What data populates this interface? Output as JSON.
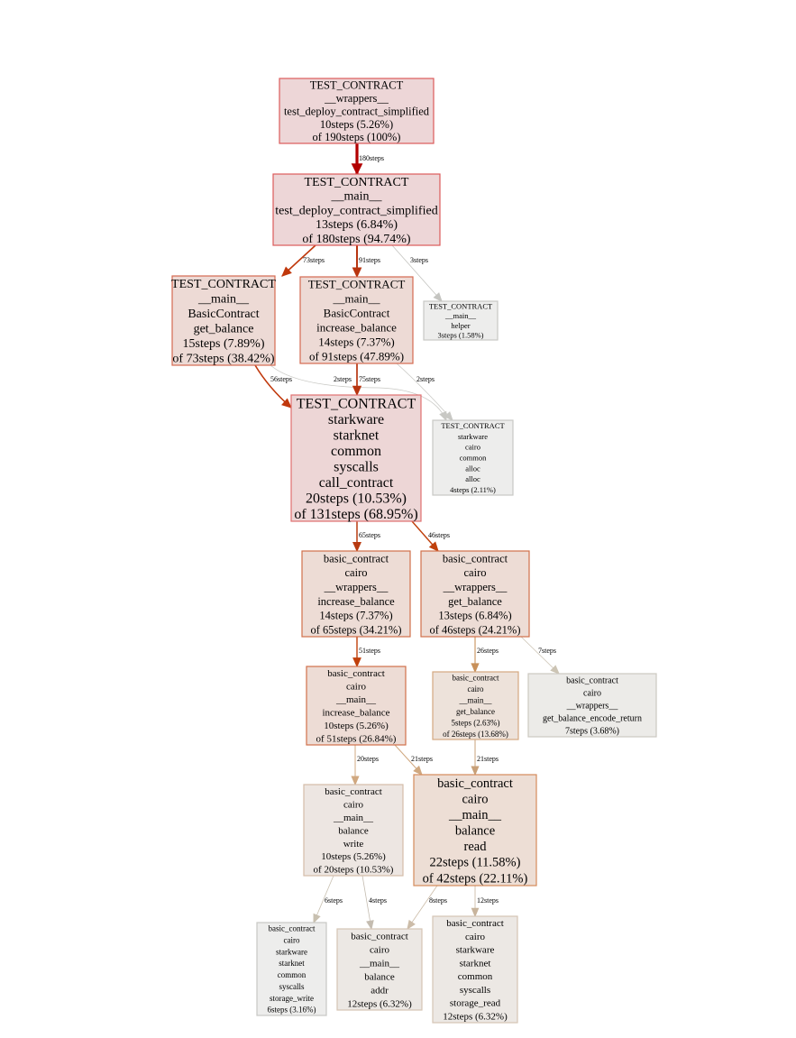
{
  "graph": {
    "nodes": [
      {
        "id": "n1",
        "lines": [
          "TEST_CONTRACT",
          "__wrappers__",
          "test_deploy_contract_simplified",
          "10steps (5.26%)",
          "of 190steps (100%)"
        ],
        "fill": "#edd6d7",
        "stroke": "#dc5a5a"
      },
      {
        "id": "n2",
        "lines": [
          "TEST_CONTRACT",
          "__main__",
          "test_deploy_contract_simplified",
          "13steps (6.84%)",
          "of 180steps (94.74%)"
        ],
        "fill": "#edd6d7",
        "stroke": "#dc5a5a"
      },
      {
        "id": "n3",
        "lines": [
          "TEST_CONTRACT",
          "__main__",
          "BasicContract",
          "get_balance",
          "15steps (7.89%)",
          "of 73steps (38.42%)"
        ],
        "fill": "#eddad5",
        "stroke": "#d46a50"
      },
      {
        "id": "n4",
        "lines": [
          "TEST_CONTRACT",
          "__main__",
          "BasicContract",
          "increase_balance",
          "14steps (7.37%)",
          "of 91steps (47.89%)"
        ],
        "fill": "#eddad5",
        "stroke": "#d46a50"
      },
      {
        "id": "n5",
        "lines": [
          "TEST_CONTRACT",
          "__main__",
          "helper",
          "3steps (1.58%)"
        ],
        "fill": "#ededec",
        "stroke": "#c8c8c4"
      },
      {
        "id": "n6",
        "lines": [
          "TEST_CONTRACT",
          "starkware",
          "starknet",
          "common",
          "syscalls",
          "call_contract",
          "20steps (10.53%)",
          "of 131steps (68.95%)"
        ],
        "fill": "#edd6d6",
        "stroke": "#e07070"
      },
      {
        "id": "n7",
        "lines": [
          "TEST_CONTRACT",
          "starkware",
          "cairo",
          "common",
          "alloc",
          "alloc",
          "4steps (2.11%)"
        ],
        "fill": "#ededec",
        "stroke": "#c8c8c4"
      },
      {
        "id": "n8",
        "lines": [
          "basic_contract",
          "cairo",
          "__wrappers__",
          "increase_balance",
          "14steps (7.37%)",
          "of 65steps (34.21%)"
        ],
        "fill": "#eddcd5",
        "stroke": "#d0704a"
      },
      {
        "id": "n9",
        "lines": [
          "basic_contract",
          "cairo",
          "__wrappers__",
          "get_balance",
          "13steps (6.84%)",
          "of 46steps (24.21%)"
        ],
        "fill": "#eddcd5",
        "stroke": "#d0704a"
      },
      {
        "id": "n10",
        "lines": [
          "basic_contract",
          "cairo",
          "__main__",
          "increase_balance",
          "10steps (5.26%)",
          "of 51steps (26.84%)"
        ],
        "fill": "#eddcd5",
        "stroke": "#d0704a"
      },
      {
        "id": "n11",
        "lines": [
          "basic_contract",
          "cairo",
          "__main__",
          "get_balance",
          "5steps (2.63%)",
          "of 26steps (13.68%)"
        ],
        "fill": "#ede2da",
        "stroke": "#d4a880"
      },
      {
        "id": "n12",
        "lines": [
          "basic_contract",
          "cairo",
          "__wrappers__",
          "get_balance_encode_return",
          "7steps (3.68%)"
        ],
        "fill": "#ecebe8",
        "stroke": "#ccc8c0"
      },
      {
        "id": "n13",
        "lines": [
          "basic_contract",
          "cairo",
          "__main__",
          "balance",
          "write",
          "10steps (5.26%)",
          "of 20steps (10.53%)"
        ],
        "fill": "#ede6e2",
        "stroke": "#d4bca8"
      },
      {
        "id": "n14",
        "lines": [
          "basic_contract",
          "cairo",
          "__main__",
          "balance",
          "read",
          "22steps (11.58%)",
          "of 42steps (22.11%)"
        ],
        "fill": "#edded5",
        "stroke": "#d48a5a"
      },
      {
        "id": "n15",
        "lines": [
          "basic_contract",
          "cairo",
          "starkware",
          "starknet",
          "common",
          "syscalls",
          "storage_write",
          "6steps (3.16%)"
        ],
        "fill": "#ededec",
        "stroke": "#c8c8c4"
      },
      {
        "id": "n16",
        "lines": [
          "basic_contract",
          "cairo",
          "__main__",
          "balance",
          "addr",
          "12steps (6.32%)"
        ],
        "fill": "#ece8e4",
        "stroke": "#d4c4b4"
      },
      {
        "id": "n17",
        "lines": [
          "basic_contract",
          "cairo",
          "starkware",
          "starknet",
          "common",
          "syscalls",
          "storage_read",
          "12steps (6.32%)"
        ],
        "fill": "#ece8e4",
        "stroke": "#d4c4b4"
      }
    ],
    "edges": [
      {
        "from": "n1",
        "to": "n2",
        "label": "180steps",
        "color": "#b20000"
      },
      {
        "from": "n2",
        "to": "n3",
        "label": "73steps",
        "color": "#c0380c"
      },
      {
        "from": "n2",
        "to": "n4",
        "label": "91steps",
        "color": "#b83510"
      },
      {
        "from": "n2",
        "to": "n5",
        "label": "3steps",
        "color": "#c4c4c0"
      },
      {
        "from": "n3",
        "to": "n6",
        "label": "56steps",
        "color": "#c0380c"
      },
      {
        "from": "n3",
        "to": "n7",
        "label": "2steps",
        "color": "#c8c8c4"
      },
      {
        "from": "n4",
        "to": "n6",
        "label": "75steps",
        "color": "#b83510"
      },
      {
        "from": "n4",
        "to": "n7",
        "label": "2steps",
        "color": "#c8c8c4"
      },
      {
        "from": "n6",
        "to": "n8",
        "label": "65steps",
        "color": "#b83a10"
      },
      {
        "from": "n6",
        "to": "n9",
        "label": "46steps",
        "color": "#c0400c"
      },
      {
        "from": "n8",
        "to": "n10",
        "label": "51steps",
        "color": "#c0400c"
      },
      {
        "from": "n9",
        "to": "n11",
        "label": "26steps",
        "color": "#c8905a"
      },
      {
        "from": "n9",
        "to": "n12",
        "label": "7steps",
        "color": "#ccc4b4"
      },
      {
        "from": "n10",
        "to": "n13",
        "label": "20steps",
        "color": "#d0a880"
      },
      {
        "from": "n10",
        "to": "n14",
        "label": "21steps",
        "color": "#d0a880"
      },
      {
        "from": "n11",
        "to": "n14",
        "label": "21steps",
        "color": "#c8a078"
      },
      {
        "from": "n13",
        "to": "n15",
        "label": "6steps",
        "color": "#c8c0b0"
      },
      {
        "from": "n13",
        "to": "n16",
        "label": "4steps",
        "color": "#c4bcb0"
      },
      {
        "from": "n14",
        "to": "n16",
        "label": "8steps",
        "color": "#ccbca8"
      },
      {
        "from": "n14",
        "to": "n17",
        "label": "12steps",
        "color": "#c8b49c"
      }
    ]
  }
}
